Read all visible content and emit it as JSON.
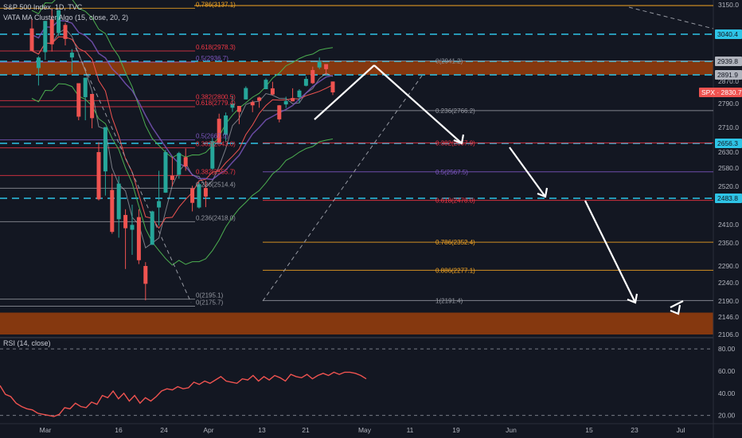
{
  "header": {
    "symbol_line": "S&P 500 Index, 1D, TVC",
    "indicator_line": "VATA MA Cluster Algo (15, close, 20, 2)",
    "rsi_label": "RSI (14, close)"
  },
  "colors": {
    "background": "#131722",
    "up_candle": "#26a69a",
    "down_candle": "#ef5350",
    "supply_zone": "#8b3a0f",
    "dashed_level": "#2ec4e6",
    "rsi_line": "#ef5350",
    "price_tag": "#ef5350"
  },
  "chart_data": [
    {
      "type": "line",
      "title": "S&P 500 Index, 1D, TVC",
      "y_axis_ticks": [
        "3150.0",
        "2870.0",
        "2790.0",
        "2710.0",
        "2630.0",
        "2580.0",
        "2520.0",
        "2410.0",
        "2350.0",
        "2290.0",
        "2240.0",
        "2190.0",
        "2146.0",
        "2106.0"
      ],
      "price_tags": [
        {
          "label": "3040.4",
          "value": 3040.4,
          "style": "dashed"
        },
        {
          "label": "2939.8",
          "value": 2939.8,
          "style": "zone"
        },
        {
          "label": "2891.9",
          "value": 2891.9,
          "style": "zone"
        },
        {
          "label": "SPX · 2830.7",
          "value": 2830.7,
          "style": "current"
        },
        {
          "label": "2656.3",
          "value": 2656.3,
          "style": "dashed"
        },
        {
          "label": "2483.8",
          "value": 2483.8,
          "style": "dashed"
        }
      ],
      "x_axis_labels": [
        "Mar",
        "16",
        "24",
        "Apr",
        "13",
        "21",
        "May",
        "11",
        "19",
        "Jun",
        "15",
        "23",
        "Jul"
      ],
      "ylim": [
        2106,
        3170
      ],
      "fib_left": [
        {
          "label": "0.786(3137.1)",
          "value": 3137.1
        },
        {
          "label": "0.618(2978.3)",
          "value": 2978.3
        },
        {
          "label": "0.5(2936.7)",
          "value": 2936.7
        },
        {
          "label": "0.382(2800.5)",
          "value": 2800.5
        },
        {
          "label": "0.618(2779.4)",
          "value": 2779.4
        },
        {
          "label": "0.5(2667.9)",
          "value": 2667.9
        },
        {
          "label": "0.382(2643.0)",
          "value": 2643.0
        },
        {
          "label": "0.382(2555.7)",
          "value": 2555.7
        },
        {
          "label": "0.236(2514.4)",
          "value": 2514.4
        },
        {
          "label": "0.236(2418.0)",
          "value": 2418.0
        },
        {
          "label": "0(2195.1)",
          "value": 2195.1
        },
        {
          "label": "0(2175.7)",
          "value": 2175.7
        }
      ],
      "fib_right": [
        {
          "label": "0(2941.2)",
          "value": 2941.2
        },
        {
          "label": "0.236(2766.2)",
          "value": 2766.2
        },
        {
          "label": "0.382(2657.9)",
          "value": 2657.9
        },
        {
          "label": "0.5(2567.5)",
          "value": 2567.5
        },
        {
          "label": "0.618(2478.0)",
          "value": 2478.0
        },
        {
          "label": "0.786(2352.4)",
          "value": 2352.4
        },
        {
          "label": "0.886(2277.1)",
          "value": 2277.1
        },
        {
          "label": "1(2191.4)",
          "value": 2191.4
        }
      ],
      "supply_zones": [
        [
          2891.9,
          2939.8
        ],
        [
          2106,
          2158
        ]
      ],
      "dashed_levels": [
        3040.4,
        2939.8,
        2891.9,
        2656.3,
        2483.8
      ],
      "candles": [
        {
          "date": "Feb 27",
          "o": 3062,
          "h": 3097,
          "l": 2977,
          "c": 2979
        },
        {
          "date": "Feb 28",
          "o": 2916,
          "h": 2959,
          "l": 2855,
          "c": 2954
        },
        {
          "date": "Mar 2",
          "o": 2974,
          "h": 3090,
          "l": 2945,
          "c": 3090
        },
        {
          "date": "Mar 3",
          "o": 3096,
          "h": 3136,
          "l": 2976,
          "c": 3003
        },
        {
          "date": "Mar 4",
          "o": 3045,
          "h": 3130,
          "l": 3034,
          "c": 3130
        },
        {
          "date": "Mar 5",
          "o": 3075,
          "h": 3083,
          "l": 2999,
          "c": 3023
        },
        {
          "date": "Mar 6",
          "o": 2954,
          "h": 2985,
          "l": 2901,
          "c": 2972
        },
        {
          "date": "Mar 9",
          "o": 2863,
          "h": 2863,
          "l": 2734,
          "c": 2746
        },
        {
          "date": "Mar 10",
          "o": 2813,
          "h": 2882,
          "l": 2734,
          "c": 2882
        },
        {
          "date": "Mar 11",
          "o": 2825,
          "h": 2825,
          "l": 2707,
          "c": 2741
        },
        {
          "date": "Mar 12",
          "o": 2630,
          "h": 2660,
          "l": 2478,
          "c": 2481
        },
        {
          "date": "Mar 13",
          "o": 2569,
          "h": 2711,
          "l": 2492,
          "c": 2711
        },
        {
          "date": "Mar 16",
          "o": 2509,
          "h": 2562,
          "l": 2380,
          "c": 2386
        },
        {
          "date": "Mar 17",
          "o": 2425,
          "h": 2553,
          "l": 2367,
          "c": 2529
        },
        {
          "date": "Mar 18",
          "o": 2437,
          "h": 2453,
          "l": 2281,
          "c": 2398
        },
        {
          "date": "Mar 19",
          "o": 2393,
          "h": 2466,
          "l": 2319,
          "c": 2409
        },
        {
          "date": "Mar 20",
          "o": 2431,
          "h": 2453,
          "l": 2295,
          "c": 2305
        },
        {
          "date": "Mar 23",
          "o": 2290,
          "h": 2300,
          "l": 2192,
          "c": 2237
        },
        {
          "date": "Mar 24",
          "o": 2345,
          "h": 2449,
          "l": 2345,
          "c": 2447
        },
        {
          "date": "Mar 25",
          "o": 2458,
          "h": 2571,
          "l": 2407,
          "c": 2476
        },
        {
          "date": "Mar 26",
          "o": 2501,
          "h": 2637,
          "l": 2500,
          "c": 2630
        },
        {
          "date": "Mar 27",
          "o": 2555,
          "h": 2615,
          "l": 2520,
          "c": 2541
        },
        {
          "date": "Mar 30",
          "o": 2558,
          "h": 2631,
          "l": 2545,
          "c": 2627
        },
        {
          "date": "Mar 31",
          "o": 2614,
          "h": 2641,
          "l": 2571,
          "c": 2585
        },
        {
          "date": "Apr 1",
          "o": 2514,
          "h": 2522,
          "l": 2447,
          "c": 2471
        },
        {
          "date": "Apr 2",
          "o": 2458,
          "h": 2533,
          "l": 2455,
          "c": 2527
        },
        {
          "date": "Apr 3",
          "o": 2515,
          "h": 2538,
          "l": 2459,
          "c": 2489
        },
        {
          "date": "Apr 6",
          "o": 2578,
          "h": 2676,
          "l": 2574,
          "c": 2664
        },
        {
          "date": "Apr 7",
          "o": 2739,
          "h": 2756,
          "l": 2657,
          "c": 2659
        },
        {
          "date": "Apr 8",
          "o": 2685,
          "h": 2760,
          "l": 2663,
          "c": 2750
        },
        {
          "date": "Apr 9",
          "o": 2776,
          "h": 2819,
          "l": 2762,
          "c": 2790
        },
        {
          "date": "Apr 13",
          "o": 2782,
          "h": 2782,
          "l": 2721,
          "c": 2762
        },
        {
          "date": "Apr 14",
          "o": 2805,
          "h": 2852,
          "l": 2805,
          "c": 2846
        },
        {
          "date": "Apr 15",
          "o": 2795,
          "h": 2801,
          "l": 2761,
          "c": 2784
        },
        {
          "date": "Apr 16",
          "o": 2812,
          "h": 2815,
          "l": 2776,
          "c": 2800
        },
        {
          "date": "Apr 17",
          "o": 2842,
          "h": 2880,
          "l": 2842,
          "c": 2875
        },
        {
          "date": "Apr 20",
          "o": 2845,
          "h": 2868,
          "l": 2820,
          "c": 2823
        },
        {
          "date": "Apr 21",
          "o": 2784,
          "h": 2785,
          "l": 2727,
          "c": 2737
        },
        {
          "date": "Apr 22",
          "o": 2787,
          "h": 2815,
          "l": 2775,
          "c": 2799
        },
        {
          "date": "Apr 23",
          "o": 2810,
          "h": 2845,
          "l": 2798,
          "c": 2798
        },
        {
          "date": "Apr 24",
          "o": 2813,
          "h": 2842,
          "l": 2791,
          "c": 2837
        },
        {
          "date": "Apr 27",
          "o": 2854,
          "h": 2887,
          "l": 2852,
          "c": 2878
        },
        {
          "date": "Apr 28",
          "o": 2909,
          "h": 2921,
          "l": 2860,
          "c": 2863
        },
        {
          "date": "Apr 29",
          "o": 2918,
          "h": 2954,
          "l": 2912,
          "c": 2939
        },
        {
          "date": "Apr 30",
          "o": 2930,
          "h": 2930,
          "l": 2892,
          "c": 2912
        },
        {
          "date": "May 1",
          "o": 2869,
          "h": 2869,
          "l": 2821,
          "c": 2830.7
        }
      ],
      "rsi": {
        "ticks": [
          "80.00",
          "60.00",
          "40.00",
          "20.00"
        ],
        "ylim": [
          14,
          88
        ],
        "values": [
          47,
          39,
          37,
          31,
          28,
          26,
          25,
          22,
          21,
          20,
          19,
          21,
          27,
          26,
          31,
          28,
          27,
          32,
          30,
          38,
          36,
          42,
          35,
          40,
          33,
          38,
          31,
          36,
          33,
          37,
          42,
          44,
          43,
          46,
          44,
          45,
          50,
          48,
          51,
          49,
          52,
          55,
          51,
          50,
          49,
          53,
          52,
          56,
          51,
          55,
          52,
          56,
          54,
          51,
          57,
          55,
          54,
          57,
          53,
          56,
          58,
          56,
          59,
          57,
          59,
          59,
          58,
          56,
          53
        ]
      }
    }
  ]
}
